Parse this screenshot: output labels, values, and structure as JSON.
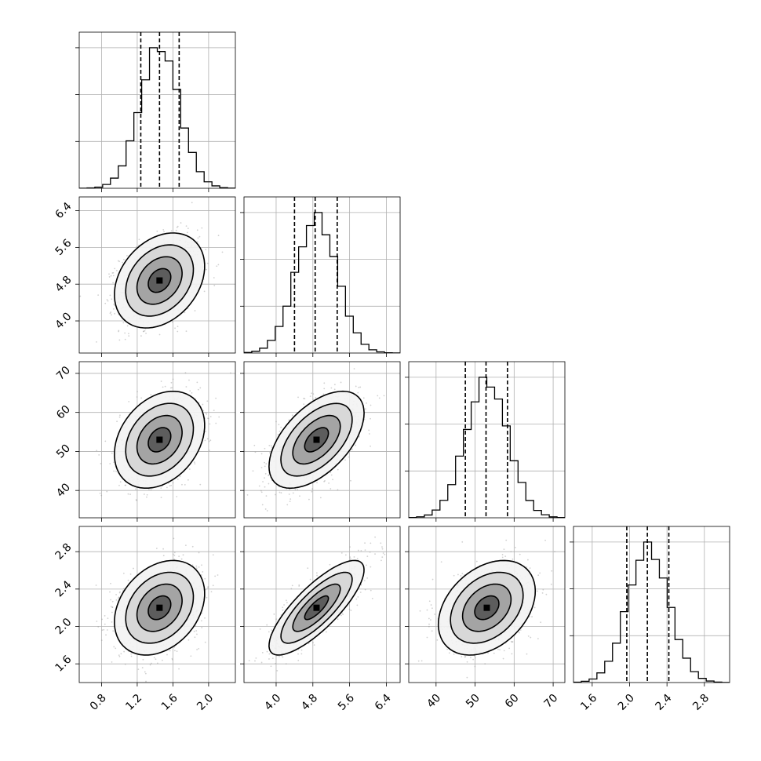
{
  "chart_data": {
    "type": "corner",
    "variables": [
      {
        "range": [
          0.55,
          2.3
        ],
        "ticks": [
          0.8,
          1.2,
          1.6,
          2.0
        ],
        "tick_labels": [
          "0.8",
          "1.2",
          "1.6",
          "2.0"
        ],
        "quantiles": [
          1.24,
          1.45,
          1.67
        ],
        "mean": 1.45,
        "sd": 0.22
      },
      {
        "range": [
          3.3,
          6.7
        ],
        "ticks": [
          4.0,
          4.8,
          5.6,
          6.4
        ],
        "tick_labels": [
          "4.0",
          "4.8",
          "5.6",
          "6.4"
        ],
        "quantiles": [
          4.4,
          4.85,
          5.33
        ],
        "mean": 4.88,
        "sd": 0.45
      },
      {
        "range": [
          33,
          73
        ],
        "ticks": [
          40,
          50,
          60,
          70
        ],
        "tick_labels": [
          "40",
          "50",
          "60",
          "70"
        ],
        "quantiles": [
          47.5,
          52.8,
          58.3
        ],
        "mean": 53.0,
        "sd": 5.4
      },
      {
        "range": [
          1.4,
          3.07
        ],
        "ticks": [
          1.6,
          2.0,
          2.4,
          2.8
        ],
        "tick_labels": [
          "1.6",
          "2.0",
          "2.4",
          "2.8"
        ],
        "quantiles": [
          1.97,
          2.19,
          2.42
        ],
        "mean": 2.2,
        "sd": 0.22
      }
    ],
    "correlations": [
      {
        "i": 1,
        "j": 0,
        "rho": 0.3
      },
      {
        "i": 2,
        "j": 0,
        "rho": 0.3
      },
      {
        "i": 2,
        "j": 1,
        "rho": 0.55
      },
      {
        "i": 3,
        "j": 0,
        "rho": 0.3
      },
      {
        "i": 3,
        "j": 1,
        "rho": 0.8
      },
      {
        "i": 3,
        "j": 2,
        "rho": 0.35
      }
    ],
    "hist_bins": 20,
    "contour_levels_sigma": [
      0.5,
      1.0,
      1.5,
      2.0
    ],
    "grid": true,
    "colors": {
      "line": "#000000",
      "grid": "#b0b0b0",
      "points": "#9a9a9a"
    }
  }
}
